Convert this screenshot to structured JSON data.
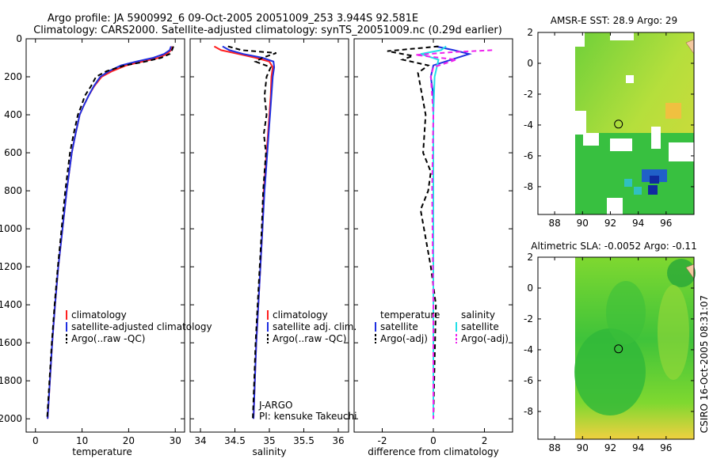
{
  "header": {
    "line1": "Argo profile: JA 5900992_6 09-Oct-2005 20051009_253 3.944S 92.581E",
    "line2": "Climatology: CARS2000. Satellite-adjusted climatology: synTS_20051009.nc (0.29d earlier)"
  },
  "side_label": "CSIRO 16-Oct-2005 08:31:07",
  "colors": {
    "climatology": "#ff2020",
    "satellite": "#1f2fe0",
    "argo": "#000000",
    "sat_sal": "#22e0e8",
    "argo_sal": "#ee22ee"
  },
  "chart_data": [
    {
      "id": "temperature",
      "type": "line",
      "xlabel": "temperature",
      "ylabel": "",
      "xlim": [
        -2,
        32
      ],
      "ylim": [
        2070,
        0
      ],
      "xticks": [
        0,
        10,
        20,
        30
      ],
      "yticks": [
        0,
        200,
        400,
        600,
        800,
        1000,
        1200,
        1400,
        1600,
        1800,
        2000
      ],
      "legend": [
        "climatology",
        "satellite-adjusted climatology",
        "Argo(..raw -QC)"
      ],
      "series": [
        {
          "name": "climatology",
          "color": "#ff2020",
          "dash": "",
          "x": [
            29.3,
            29.1,
            28.2,
            26.5,
            23.0,
            19.5,
            16.5,
            14.2,
            12.6,
            11.4,
            10.4,
            9.5,
            8.6,
            7.8,
            6.7,
            5.8,
            4.9,
            4.2,
            3.6,
            3.1,
            2.6
          ],
          "y": [
            40,
            60,
            80,
            100,
            120,
            140,
            170,
            200,
            250,
            300,
            350,
            400,
            500,
            600,
            800,
            1000,
            1200,
            1400,
            1600,
            1800,
            2000
          ]
        },
        {
          "name": "satellite-adjusted climatology",
          "color": "#1f2fe0",
          "dash": "",
          "x": [
            29.1,
            28.8,
            27.6,
            25.3,
            21.6,
            18.4,
            15.8,
            13.9,
            12.5,
            11.4,
            10.4,
            9.5,
            8.6,
            7.8,
            6.7,
            5.8,
            4.9,
            4.2,
            3.6,
            3.1,
            2.6
          ],
          "y": [
            40,
            60,
            80,
            100,
            120,
            140,
            170,
            200,
            250,
            300,
            350,
            400,
            500,
            600,
            800,
            1000,
            1200,
            1400,
            1600,
            1800,
            2000
          ]
        },
        {
          "name": "Argo(..raw -QC)",
          "color": "#000000",
          "dash": "6,4",
          "x": [
            29.6,
            29.3,
            28.8,
            27.0,
            23.6,
            19.2,
            15.3,
            13.0,
            11.9,
            10.6,
            9.9,
            9.1,
            8.2,
            7.4,
            6.4,
            5.6,
            4.8,
            4.1,
            3.5,
            3.0,
            2.5
          ],
          "y": [
            40,
            60,
            80,
            100,
            120,
            140,
            170,
            200,
            250,
            300,
            350,
            400,
            500,
            600,
            800,
            1000,
            1200,
            1400,
            1600,
            1800,
            2000
          ]
        }
      ]
    },
    {
      "id": "salinity",
      "type": "line",
      "xlabel": "salinity",
      "xlim": [
        33.85,
        36.15
      ],
      "ylim": [
        2070,
        0
      ],
      "xticks": [
        34,
        34.5,
        35,
        35.5,
        36
      ],
      "legend": [
        "climatology",
        "satellite adj. clim.",
        "Argo(..raw -QC)"
      ],
      "annotation": [
        "J-ARGO",
        "PI: kensuke Takeuchi"
      ],
      "series": [
        {
          "name": "climatology",
          "color": "#ff2020",
          "dash": "",
          "x": [
            34.2,
            34.3,
            34.55,
            34.8,
            35.0,
            35.05,
            35.03,
            35.02,
            35.0,
            34.98,
            34.96,
            34.94,
            34.92,
            34.9,
            34.87,
            34.84,
            34.81,
            34.79,
            34.77
          ],
          "y": [
            40,
            60,
            80,
            100,
            120,
            150,
            200,
            300,
            400,
            500,
            600,
            700,
            800,
            1000,
            1200,
            1400,
            1600,
            1800,
            2000
          ]
        },
        {
          "name": "satellite adj. clim.",
          "color": "#1f2fe0",
          "dash": "",
          "x": [
            34.32,
            34.42,
            34.62,
            34.9,
            35.06,
            35.07,
            35.05,
            35.03,
            35.01,
            34.99,
            34.97,
            34.95,
            34.93,
            34.9,
            34.87,
            34.84,
            34.81,
            34.79,
            34.77
          ],
          "y": [
            40,
            60,
            80,
            100,
            120,
            150,
            200,
            300,
            400,
            500,
            600,
            700,
            800,
            1000,
            1200,
            1400,
            1600,
            1800,
            2000
          ]
        },
        {
          "name": "Argo(..raw -QC)",
          "color": "#000000",
          "dash": "6,4",
          "x": [
            34.4,
            34.6,
            35.1,
            34.9,
            34.8,
            35.02,
            34.96,
            34.93,
            34.96,
            34.92,
            34.95,
            34.93,
            34.91,
            34.89,
            34.86,
            34.83,
            34.8,
            34.78,
            34.76
          ],
          "y": [
            40,
            60,
            75,
            100,
            120,
            150,
            200,
            300,
            400,
            500,
            600,
            700,
            800,
            1000,
            1200,
            1400,
            1600,
            1800,
            2000
          ]
        }
      ]
    },
    {
      "id": "difference",
      "type": "line",
      "xlabel": "difference from climatology",
      "xlim": [
        -3.1,
        3.1
      ],
      "ylim": [
        2070,
        0
      ],
      "xticks": [
        -2,
        0,
        2
      ],
      "legend": [
        {
          "group": "temperature",
          "items": [
            "satellite",
            "Argo(-adj)"
          ]
        },
        {
          "group": "salinity",
          "items": [
            "satellite",
            "Argo(-adj)"
          ]
        }
      ],
      "series": [
        {
          "name": "temperature satellite",
          "color": "#1f2fe0",
          "dash": "",
          "x": [
            0.1,
            0.8,
            1.4,
            0.7,
            0.0,
            -0.1,
            0.0,
            0.0,
            0.0,
            0.0,
            0.0,
            0.0,
            0.0
          ],
          "y": [
            40,
            60,
            80,
            110,
            140,
            200,
            300,
            500,
            800,
            1000,
            1400,
            1800,
            2000
          ]
        },
        {
          "name": "temperature Argo(-adj)",
          "color": "#000000",
          "dash": "6,4",
          "x": [
            0.2,
            -1.8,
            -0.8,
            -1.2,
            -0.2,
            -0.6,
            -0.3,
            -0.4,
            -0.1,
            -0.2,
            -0.5,
            -0.1,
            0.1,
            0.0
          ],
          "y": [
            40,
            65,
            90,
            110,
            140,
            180,
            400,
            600,
            700,
            800,
            900,
            1200,
            1400,
            2000
          ]
        },
        {
          "name": "salinity satellite",
          "color": "#22e0e8",
          "dash": "",
          "x": [
            0.5,
            0.3,
            -0.5,
            0.2,
            0.05,
            0.0,
            0.0,
            0.0,
            0.0,
            0.0
          ],
          "y": [
            40,
            60,
            80,
            110,
            200,
            400,
            800,
            1200,
            1600,
            2000
          ]
        },
        {
          "name": "salinity Argo(-adj)",
          "color": "#ee22ee",
          "dash": "6,4",
          "x": [
            2.3,
            0.8,
            -0.7,
            0.9,
            0.0,
            -0.1,
            0.0,
            -0.05,
            0.0,
            0.0
          ],
          "y": [
            60,
            70,
            85,
            110,
            150,
            200,
            400,
            800,
            1400,
            2000
          ]
        }
      ]
    },
    {
      "id": "sst_map",
      "type": "heatmap",
      "title": "AMSR-E SST: 28.9 Argo: 29",
      "xlim": [
        86.8,
        98
      ],
      "ylim": [
        -9.8,
        2
      ],
      "xticks": [
        88,
        90,
        92,
        94,
        96
      ],
      "yticks": [
        2,
        0,
        -2,
        -4,
        -6,
        -8
      ],
      "marker": {
        "lon": 92.58,
        "lat": -3.94
      }
    },
    {
      "id": "sla_map",
      "type": "heatmap",
      "title": "Altimetric SLA: -0.0052 Argo: -0.11",
      "xlim": [
        86.8,
        98
      ],
      "ylim": [
        -9.8,
        2
      ],
      "xticks": [
        88,
        90,
        92,
        94,
        96
      ],
      "yticks": [
        2,
        0,
        -2,
        -4,
        -6,
        -8
      ],
      "marker": {
        "lon": 92.58,
        "lat": -3.94
      }
    }
  ]
}
